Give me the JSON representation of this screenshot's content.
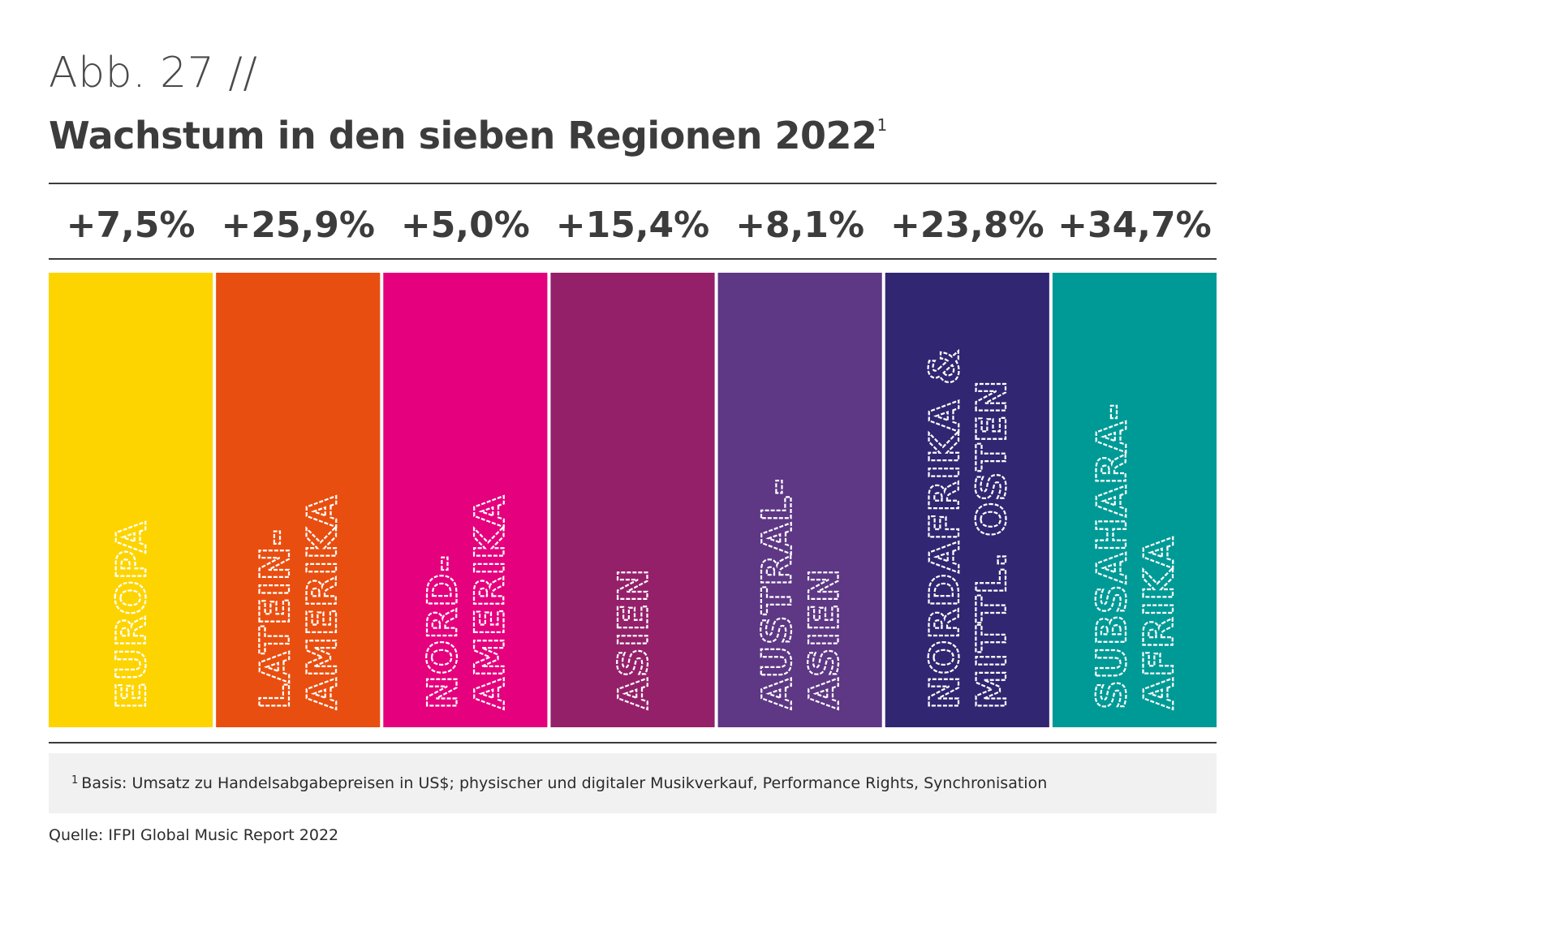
{
  "figure": {
    "number": "Abb. 27 //",
    "title": "Wachstum in den sieben Regionen 2022",
    "title_footnote_mark": "1"
  },
  "chart_data": {
    "type": "bar",
    "value_unit": "%",
    "categories": [
      {
        "label_lines": [
          "EUROPA"
        ],
        "value": 7.5,
        "value_label": "+7,5%",
        "color": "#FDD400"
      },
      {
        "label_lines": [
          "LATEIN-",
          "AMERIKA"
        ],
        "value": 25.9,
        "value_label": "+25,9%",
        "color": "#E84E0F"
      },
      {
        "label_lines": [
          "NORD-",
          "AMERIKA"
        ],
        "value": 5.0,
        "value_label": "+5,0%",
        "color": "#E5007D"
      },
      {
        "label_lines": [
          "ASIEN"
        ],
        "value": 15.4,
        "value_label": "+15,4%",
        "color": "#95206A"
      },
      {
        "label_lines": [
          "AUSTRAL-",
          "ASIEN"
        ],
        "value": 8.1,
        "value_label": "+8,1%",
        "color": "#5E3785"
      },
      {
        "label_lines": [
          "NORDAFRIKA &",
          "MITTL. OSTEN"
        ],
        "value": 23.8,
        "value_label": "+23,8%",
        "color": "#312672"
      },
      {
        "label_lines": [
          "SUBSAHARA-",
          "AFRIKA"
        ],
        "value": 34.7,
        "value_label": "+34,7%",
        "color": "#009A96"
      }
    ],
    "text_color": "#3c3c3c",
    "label_color": "#ffffff"
  },
  "footnote": {
    "mark": "1",
    "text": "Basis: Umsatz zu Handelsabgabepreisen in US$; physischer und digitaler Musikverkauf, Performance Rights, Synchronisation"
  },
  "source": "Quelle: IFPI Global Music Report 2022"
}
